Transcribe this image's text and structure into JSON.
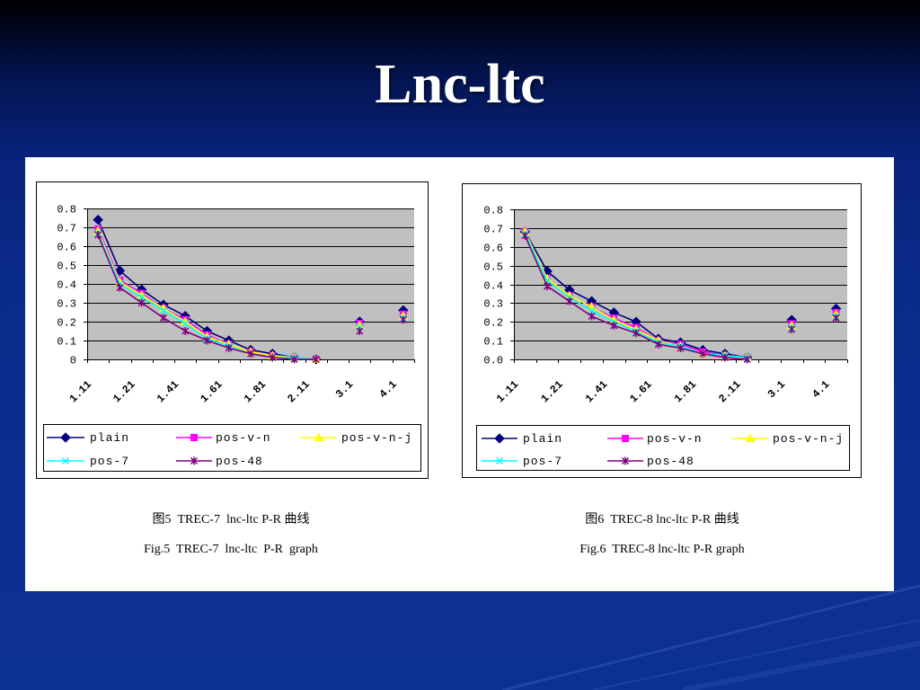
{
  "slide": {
    "title": "Lnc-ltc"
  },
  "chart_data": [
    {
      "type": "line",
      "categories": [
        "1.11",
        "",
        "1.21",
        "",
        "1.41",
        "",
        "1.61",
        "",
        "1.81",
        "",
        "2.11",
        "",
        "3.1",
        "",
        "4.1"
      ],
      "y_tick_labels": [
        "0.8",
        "0.7",
        "0.6",
        "0.5",
        "0.4",
        "0.3",
        "0.2",
        "0.1",
        "0"
      ],
      "ylim": [
        0,
        0.8
      ],
      "grid": true,
      "legend_position": "bottom",
      "plot_background": "#C0C0C0",
      "series": [
        {
          "name": "plain",
          "color": "#000080",
          "marker": "diamond",
          "values": [
            0.74,
            0.47,
            0.37,
            0.29,
            0.23,
            0.15,
            0.1,
            0.05,
            0.03,
            0.01,
            0.0,
            null,
            0.2,
            null,
            0.26
          ]
        },
        {
          "name": "pos-v-n",
          "color": "#FF00FF",
          "marker": "square",
          "values": [
            0.69,
            0.42,
            0.35,
            0.27,
            0.21,
            0.13,
            0.08,
            0.04,
            0.02,
            0.01,
            0.0,
            null,
            0.19,
            null,
            0.24
          ]
        },
        {
          "name": "pos-v-n-j",
          "color": "#FFFF00",
          "marker": "triangle",
          "values": [
            0.68,
            0.41,
            0.34,
            0.27,
            0.2,
            0.12,
            0.08,
            0.04,
            0.02,
            0.01,
            0.0,
            null,
            0.18,
            null,
            0.23
          ]
        },
        {
          "name": "pos-7",
          "color": "#00FFFF",
          "marker": "x",
          "values": [
            0.67,
            0.4,
            0.33,
            0.26,
            0.19,
            0.11,
            0.07,
            0.03,
            0.01,
            0.01,
            0.0,
            null,
            0.17,
            null,
            0.22
          ]
        },
        {
          "name": "pos-48",
          "color": "#800080",
          "marker": "star",
          "values": [
            0.66,
            0.38,
            0.3,
            0.22,
            0.15,
            0.1,
            0.06,
            0.03,
            0.01,
            0.0,
            0.0,
            null,
            0.15,
            null,
            0.21
          ]
        }
      ],
      "caption_cn": "图5  TREC-7  lnc-ltc P-R 曲线",
      "caption_en": "Fig.5  TREC-7  lnc-ltc  P-R  graph"
    },
    {
      "type": "line",
      "categories": [
        "1.11",
        "",
        "1.21",
        "",
        "1.41",
        "",
        "1.61",
        "",
        "1.81",
        "",
        "2.11",
        "",
        "3.1",
        "",
        "4.1"
      ],
      "y_tick_labels": [
        "0.8",
        "0.7",
        "0.6",
        "0.5",
        "0.4",
        "0.3",
        "0.2",
        "0.1",
        "0.0"
      ],
      "ylim": [
        0,
        0.8
      ],
      "grid": true,
      "legend_position": "bottom",
      "plot_background": "#C0C0C0",
      "series": [
        {
          "name": "plain",
          "color": "#000080",
          "marker": "diamond",
          "values": [
            0.68,
            0.47,
            0.37,
            0.31,
            0.25,
            0.2,
            0.11,
            0.09,
            0.05,
            0.03,
            0.01,
            null,
            0.21,
            null,
            0.27
          ]
        },
        {
          "name": "pos-v-n",
          "color": "#FF00FF",
          "marker": "square",
          "values": [
            0.68,
            0.43,
            0.34,
            0.28,
            0.22,
            0.17,
            0.1,
            0.08,
            0.04,
            0.02,
            0.01,
            null,
            0.19,
            null,
            0.25
          ]
        },
        {
          "name": "pos-v-n-j",
          "color": "#FFFF00",
          "marker": "triangle",
          "values": [
            0.68,
            0.43,
            0.34,
            0.28,
            0.21,
            0.16,
            0.1,
            0.07,
            0.03,
            0.02,
            0.01,
            null,
            0.18,
            null,
            0.24
          ]
        },
        {
          "name": "pos-7",
          "color": "#00FFFF",
          "marker": "x",
          "values": [
            0.67,
            0.42,
            0.33,
            0.26,
            0.2,
            0.15,
            0.09,
            0.07,
            0.03,
            0.02,
            0.01,
            null,
            0.17,
            null,
            0.23
          ]
        },
        {
          "name": "pos-48",
          "color": "#800080",
          "marker": "star",
          "values": [
            0.66,
            0.39,
            0.31,
            0.23,
            0.18,
            0.14,
            0.08,
            0.06,
            0.03,
            0.01,
            0.0,
            null,
            0.16,
            null,
            0.22
          ]
        }
      ],
      "caption_cn": "图6  TREC-8 lnc-ltc P-R 曲线",
      "caption_en": "Fig.6  TREC-8 lnc-ltc P-R graph"
    }
  ]
}
